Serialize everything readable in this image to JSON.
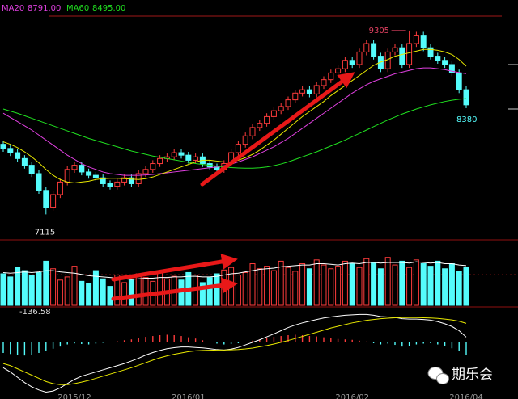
{
  "chart_data": {
    "type": "candlestick",
    "categories": [
      null,
      null,
      null,
      null,
      null,
      null,
      null,
      null,
      null,
      null,
      "2015/12",
      null,
      null,
      null,
      null,
      null,
      null,
      null,
      null,
      null,
      null,
      null,
      null,
      null,
      null,
      null,
      "2016/01",
      null,
      null,
      null,
      null,
      null,
      null,
      null,
      null,
      null,
      null,
      null,
      null,
      null,
      null,
      null,
      null,
      null,
      null,
      null,
      null,
      null,
      null,
      "2016/02",
      null,
      null,
      null,
      null,
      null,
      null,
      null,
      null,
      null,
      null,
      null,
      null,
      null,
      null,
      null,
      "2016/04"
    ],
    "ylim": [
      6830,
      9670
    ],
    "up_color": "#ff3c3c",
    "down_color": "#54fcfc",
    "ohlc": {
      "open": [
        7950,
        7900,
        7850,
        7780,
        7700,
        7600,
        7400,
        7200,
        7350,
        7500,
        7650,
        7700,
        7620,
        7580,
        7550,
        7480,
        7450,
        7500,
        7550,
        7480,
        7600,
        7650,
        7720,
        7780,
        7800,
        7850,
        7820,
        7760,
        7800,
        7720,
        7680,
        7650,
        7720,
        7850,
        7950,
        8050,
        8150,
        8200,
        8280,
        8350,
        8400,
        8480,
        8560,
        8600,
        8550,
        8650,
        8720,
        8800,
        8850,
        8950,
        8900,
        9050,
        9150,
        9000,
        8850,
        9050,
        9100,
        8900,
        9150,
        9250,
        9100,
        9000,
        8950,
        8900,
        8800,
        8600
      ],
      "high": [
        7990,
        7940,
        7890,
        7820,
        7740,
        7640,
        7440,
        7390,
        7540,
        7690,
        7740,
        7740,
        7660,
        7620,
        7590,
        7520,
        7540,
        7590,
        7590,
        7640,
        7690,
        7760,
        7820,
        7840,
        7890,
        7890,
        7860,
        7840,
        7840,
        7760,
        7720,
        7760,
        7890,
        7990,
        8090,
        8190,
        8240,
        8320,
        8390,
        8440,
        8520,
        8600,
        8640,
        8640,
        8690,
        8760,
        8840,
        8890,
        8990,
        8990,
        9090,
        9190,
        9190,
        9040,
        9090,
        9140,
        9140,
        9305,
        9290,
        9290,
        9140,
        9040,
        8990,
        8940,
        8840,
        8640
      ],
      "low": [
        7860,
        7810,
        7740,
        7660,
        7560,
        7360,
        7115,
        7160,
        7310,
        7460,
        7610,
        7580,
        7540,
        7510,
        7440,
        7410,
        7410,
        7460,
        7440,
        7440,
        7560,
        7610,
        7680,
        7740,
        7760,
        7780,
        7720,
        7720,
        7680,
        7640,
        7610,
        7610,
        7680,
        7810,
        7910,
        8010,
        8110,
        8160,
        8240,
        8310,
        8360,
        8440,
        8520,
        8510,
        8510,
        8610,
        8680,
        8760,
        8810,
        8860,
        8860,
        9010,
        8960,
        8810,
        8810,
        9010,
        8860,
        8860,
        9110,
        9060,
        8960,
        8910,
        8860,
        8760,
        8560,
        8380
      ],
      "close": [
        7900,
        7850,
        7780,
        7700,
        7600,
        7400,
        7200,
        7350,
        7500,
        7650,
        7700,
        7620,
        7580,
        7550,
        7480,
        7450,
        7500,
        7550,
        7480,
        7600,
        7650,
        7720,
        7780,
        7800,
        7850,
        7820,
        7760,
        7800,
        7720,
        7680,
        7650,
        7720,
        7850,
        7950,
        8050,
        8150,
        8200,
        8280,
        8350,
        8400,
        8480,
        8560,
        8600,
        8550,
        8650,
        8720,
        8800,
        8850,
        8950,
        8900,
        9050,
        9150,
        9000,
        8850,
        9050,
        9100,
        8900,
        9150,
        9250,
        9100,
        9000,
        8950,
        8900,
        8800,
        8600,
        8420
      ]
    },
    "series": [
      {
        "name": "MA20",
        "color": "#e040e0",
        "current": {
          "value": 8791,
          "label": "8791.00"
        },
        "values": [
          8320,
          8270,
          8220,
          8170,
          8120,
          8060,
          8000,
          7940,
          7880,
          7820,
          7770,
          7720,
          7680,
          7650,
          7620,
          7600,
          7590,
          7580,
          7580,
          7580,
          7585,
          7590,
          7600,
          7610,
          7620,
          7630,
          7640,
          7650,
          7660,
          7670,
          7680,
          7695,
          7715,
          7740,
          7770,
          7800,
          7840,
          7880,
          7920,
          7970,
          8020,
          8080,
          8140,
          8200,
          8260,
          8320,
          8380,
          8440,
          8500,
          8560,
          8610,
          8660,
          8700,
          8730,
          8760,
          8790,
          8810,
          8830,
          8850,
          8860,
          8860,
          8850,
          8840,
          8820,
          8805,
          8791
        ]
      },
      {
        "name": "MA60",
        "color": "#20e020",
        "current": {
          "value": 8495,
          "label": "8495.00"
        },
        "values": [
          8370,
          8345,
          8320,
          8290,
          8260,
          8230,
          8200,
          8170,
          8140,
          8110,
          8080,
          8050,
          8020,
          7995,
          7970,
          7945,
          7920,
          7895,
          7870,
          7850,
          7830,
          7810,
          7795,
          7780,
          7765,
          7750,
          7735,
          7720,
          7710,
          7700,
          7690,
          7680,
          7672,
          7668,
          7665,
          7665,
          7670,
          7680,
          7695,
          7715,
          7740,
          7770,
          7800,
          7830,
          7860,
          7895,
          7930,
          7965,
          8000,
          8040,
          8080,
          8120,
          8160,
          8200,
          8240,
          8275,
          8310,
          8340,
          8370,
          8395,
          8420,
          8440,
          8460,
          8475,
          8487,
          8495
        ]
      },
      {
        "color": "#e8e800",
        "values": [
          7980,
          7950,
          7910,
          7860,
          7800,
          7730,
          7650,
          7580,
          7530,
          7500,
          7490,
          7500,
          7510,
          7530,
          7540,
          7545,
          7545,
          7540,
          7535,
          7530,
          7540,
          7560,
          7590,
          7620,
          7650,
          7680,
          7710,
          7740,
          7760,
          7760,
          7750,
          7740,
          7740,
          7760,
          7790,
          7830,
          7880,
          7940,
          8000,
          8070,
          8140,
          8210,
          8280,
          8340,
          8400,
          8460,
          8530,
          8590,
          8650,
          8710,
          8770,
          8830,
          8890,
          8930,
          8960,
          9000,
          9020,
          9040,
          9060,
          9080,
          9080,
          9070,
          9050,
          9020,
          8960,
          8880
        ]
      }
    ],
    "volume": {
      "ylim": [
        0,
        100
      ],
      "values": [
        50,
        45,
        60,
        55,
        48,
        52,
        70,
        58,
        40,
        45,
        62,
        38,
        35,
        55,
        42,
        30,
        48,
        36,
        40,
        50,
        44,
        38,
        55,
        42,
        46,
        40,
        52,
        48,
        36,
        44,
        50,
        56,
        60,
        48,
        52,
        66,
        58,
        62,
        55,
        70,
        60,
        54,
        66,
        58,
        72,
        64,
        58,
        62,
        70,
        66,
        60,
        74,
        68,
        58,
        76,
        64,
        70,
        60,
        72,
        66,
        62,
        70,
        58,
        66,
        54,
        60
      ],
      "ma": {
        "color": "#ffffff",
        "values": [
          52,
          51,
          52,
          53,
          52,
          53,
          55,
          55,
          53,
          52,
          51,
          49,
          47,
          46,
          45,
          44,
          43,
          42,
          41,
          42,
          43,
          43,
          44,
          44,
          45,
          45,
          46,
          46,
          45,
          45,
          46,
          48,
          50,
          51,
          53,
          55,
          57,
          58,
          59,
          61,
          62,
          63,
          64,
          64,
          66,
          66,
          65,
          64,
          66,
          67,
          66,
          68,
          68,
          67,
          68,
          68,
          68,
          67,
          69,
          68,
          67,
          68,
          66,
          66,
          64,
          63
        ]
      }
    },
    "macd": {
      "ylim": [
        -260,
        160
      ],
      "header": -136.58,
      "hist": [
        -50,
        -55,
        -60,
        -62,
        -58,
        -50,
        -40,
        -30,
        -20,
        -10,
        -5,
        -8,
        -10,
        -6,
        -2,
        2,
        6,
        10,
        14,
        20,
        26,
        30,
        34,
        36,
        34,
        30,
        24,
        18,
        10,
        2,
        -6,
        -10,
        -8,
        -4,
        2,
        8,
        14,
        20,
        26,
        30,
        34,
        36,
        34,
        30,
        28,
        24,
        20,
        16,
        14,
        12,
        8,
        4,
        -4,
        -10,
        -6,
        -12,
        -20,
        -16,
        -10,
        -6,
        -4,
        -10,
        -18,
        -28,
        -40,
        -60
      ],
      "dif": {
        "color": "#ffffff",
        "values": [
          -120,
          -140,
          -165,
          -190,
          -210,
          -225,
          -235,
          -230,
          -215,
          -195,
          -175,
          -160,
          -150,
          -140,
          -130,
          -120,
          -110,
          -100,
          -88,
          -75,
          -60,
          -48,
          -38,
          -30,
          -25,
          -22,
          -22,
          -24,
          -26,
          -30,
          -34,
          -36,
          -32,
          -24,
          -12,
          0,
          12,
          26,
          40,
          55,
          70,
          82,
          92,
          100,
          108,
          115,
          120,
          124,
          128,
          130,
          132,
          132,
          128,
          122,
          120,
          118,
          112,
          110,
          110,
          108,
          105,
          98,
          88,
          75,
          55,
          25
        ]
      },
      "dea": {
        "color": "#e8e800",
        "values": [
          -100,
          -110,
          -125,
          -140,
          -155,
          -170,
          -185,
          -195,
          -200,
          -200,
          -195,
          -188,
          -180,
          -170,
          -160,
          -150,
          -140,
          -130,
          -120,
          -108,
          -96,
          -84,
          -73,
          -64,
          -56,
          -50,
          -44,
          -40,
          -38,
          -37,
          -36,
          -36,
          -35,
          -34,
          -31,
          -27,
          -21,
          -15,
          -8,
          0,
          9,
          18,
          28,
          38,
          48,
          58,
          68,
          76,
          84,
          92,
          98,
          104,
          108,
          112,
          114,
          116,
          117,
          117,
          117,
          116,
          115,
          113,
          110,
          106,
          100,
          90
        ]
      }
    },
    "annotations": {
      "high_label": "chart_data.ohlc.high.57",
      "low_label": "chart_data.ohlc.low.6",
      "last_low_label": "chart_data.ohlc.low.65"
    },
    "watermark": "期乐会"
  }
}
